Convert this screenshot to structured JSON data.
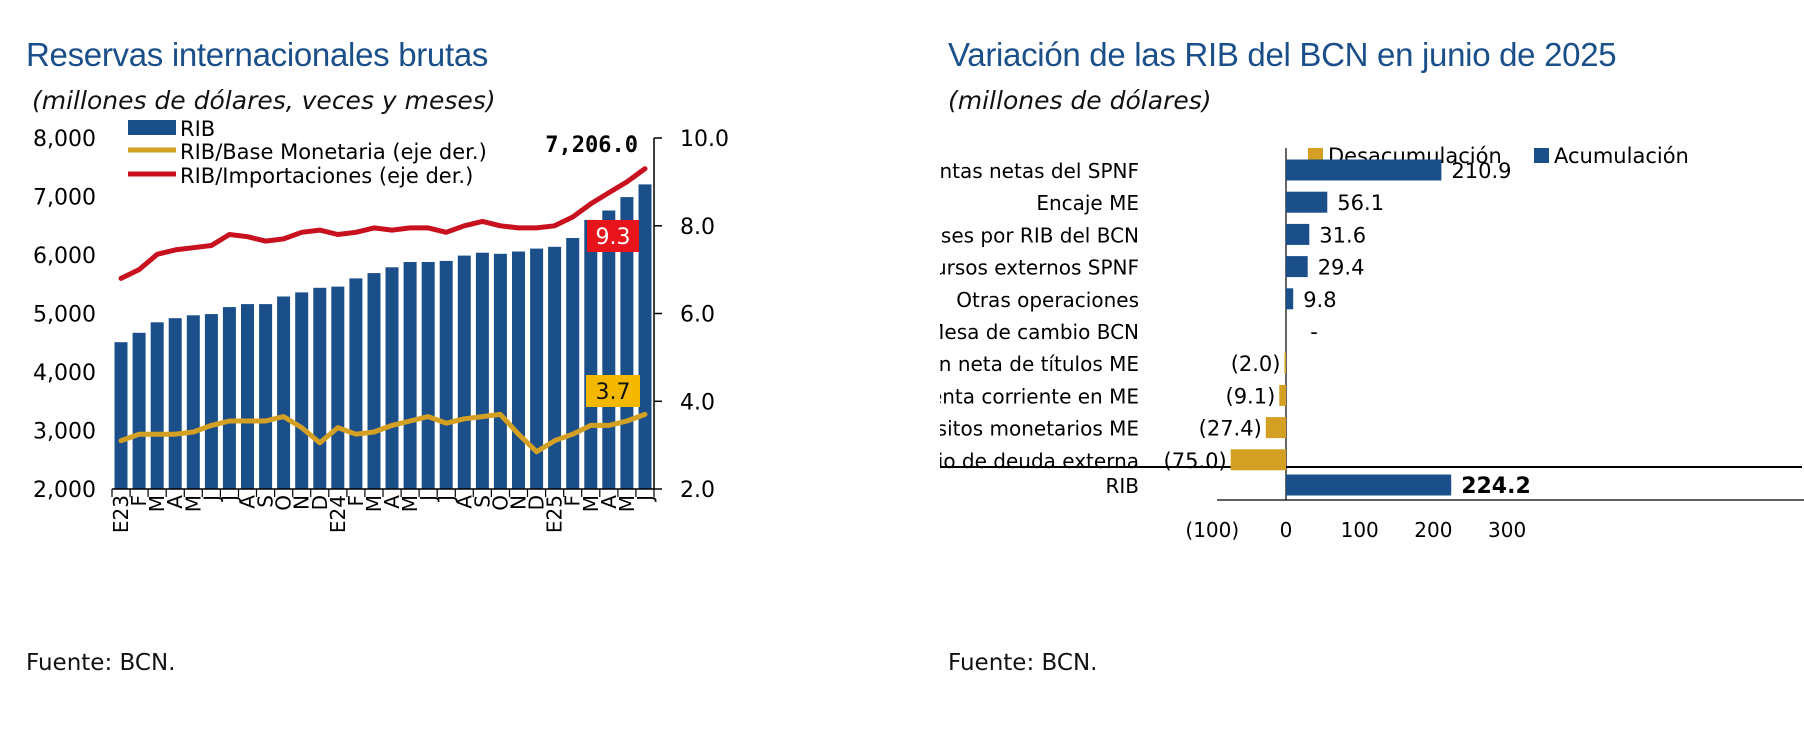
{
  "colors": {
    "title": "#1b4f8a",
    "bar": "#1b4f8a",
    "gold": "#d4a023",
    "red": "#c8101e",
    "red_badge": "#e8141c",
    "gold_badge": "#f5b800"
  },
  "left": {
    "title": "Reservas internacionales brutas",
    "subtitle": "(millones de dólares, veces y meses)",
    "source": "Fuente: BCN.",
    "legend": [
      "RIB",
      "RIB/Base Monetaria (eje der.)",
      "RIB/Importaciones (eje der.)"
    ],
    "last_value_label": "7,206.0",
    "badge_importaciones": "9.3",
    "badge_base": "3.7"
  },
  "right": {
    "title": "Variación de las RIB del BCN en junio de 2025",
    "subtitle": "(millones de dólares)",
    "source": "Fuente: BCN.",
    "legend": [
      "Desacumulación",
      "Acumulación"
    ]
  },
  "chart_data": [
    {
      "type": "bar",
      "title": "Reservas internacionales brutas",
      "subtitle": "(millones de dólares, veces y meses)",
      "categories": [
        "E23",
        "F",
        "M",
        "A",
        "M",
        "J",
        "J",
        "A",
        "S",
        "O",
        "N",
        "D",
        "E24",
        "F",
        "M",
        "A",
        "M",
        "J",
        "J",
        "A",
        "S",
        "O",
        "N",
        "D",
        "E25",
        "F",
        "M",
        "A",
        "M",
        "J"
      ],
      "series": [
        {
          "name": "RIB",
          "type": "bar",
          "axis": "left",
          "values": [
            4510,
            4670,
            4850,
            4920,
            4970,
            4990,
            5110,
            5160,
            5160,
            5290,
            5360,
            5440,
            5460,
            5600,
            5690,
            5790,
            5880,
            5880,
            5900,
            5990,
            6040,
            6020,
            6060,
            6110,
            6140,
            6290,
            6600,
            6760,
            6990,
            7206
          ]
        },
        {
          "name": "RIB/Base Monetaria (eje der.)",
          "type": "line",
          "axis": "right",
          "values": [
            3.1,
            3.25,
            3.25,
            3.25,
            3.3,
            3.45,
            3.55,
            3.55,
            3.55,
            3.65,
            3.4,
            3.05,
            3.4,
            3.25,
            3.3,
            3.45,
            3.55,
            3.65,
            3.5,
            3.6,
            3.65,
            3.7,
            3.25,
            2.85,
            3.1,
            3.25,
            3.45,
            3.45,
            3.55,
            3.7
          ]
        },
        {
          "name": "RIB/Importaciones (eje der.)",
          "type": "line",
          "axis": "right",
          "values": [
            6.8,
            7.0,
            7.35,
            7.45,
            7.5,
            7.55,
            7.8,
            7.75,
            7.65,
            7.7,
            7.85,
            7.9,
            7.8,
            7.85,
            7.95,
            7.9,
            7.95,
            7.95,
            7.85,
            8.0,
            8.1,
            8.0,
            7.95,
            7.95,
            8.0,
            8.2,
            8.5,
            8.75,
            9.0,
            9.3
          ]
        }
      ],
      "y_left": {
        "ylim": [
          2000,
          8000
        ],
        "ticks": [
          "2,000",
          "3,000",
          "4,000",
          "5,000",
          "6,000",
          "7,000",
          "8,000"
        ]
      },
      "y_right": {
        "ylim": [
          2.0,
          10.0
        ],
        "ticks": [
          "2.0",
          "4.0",
          "6.0",
          "8.0",
          "10.0"
        ]
      },
      "grid": false,
      "legend_position": "top-left"
    },
    {
      "type": "bar",
      "orientation": "horizontal",
      "title": "Variación de las RIB del BCN en junio de 2025",
      "subtitle": "(millones de dólares)",
      "categories": [
        "Cuentas netas del SPNF",
        "Encaje ME",
        "Intereses por RIB del BCN",
        "Recursos externos SPNF",
        "Otras operaciones",
        "Mesa de cambio BCN",
        "Colocación neta de títulos ME",
        "Cuenta corriente en ME",
        "Depósitos monetarios ME",
        "Servicio de deuda externa",
        "RIB"
      ],
      "values": [
        210.9,
        56.1,
        31.6,
        29.4,
        9.8,
        0,
        -2.0,
        -9.1,
        -27.4,
        -75.0,
        224.2
      ],
      "value_labels": [
        "210.9",
        "56.1",
        "31.6",
        "29.4",
        "9.8",
        "-",
        "(2.0)",
        "(9.1)",
        "(27.4)",
        "(75.0)",
        "224.2"
      ],
      "series": [
        {
          "name": "Desacumulación",
          "color": "#d4a023"
        },
        {
          "name": "Acumulación",
          "color": "#1b4f8a"
        }
      ],
      "xlim": [
        -100,
        300
      ],
      "x_ticks": [
        "(100)",
        "0",
        "100",
        "200",
        "300"
      ],
      "grid": false,
      "legend_position": "top-right"
    }
  ]
}
